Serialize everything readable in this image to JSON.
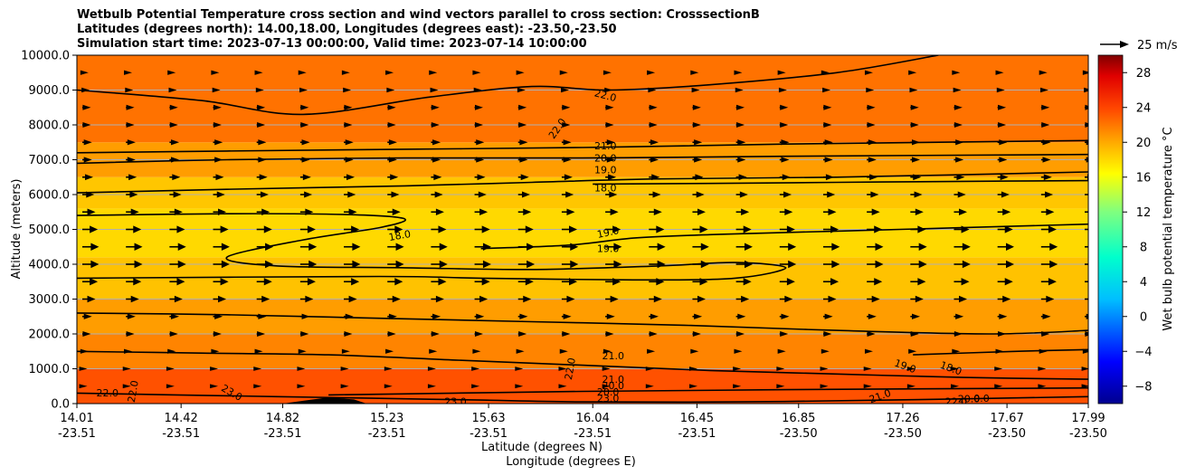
{
  "title": {
    "line1": "Wetbulb Potential Temperature cross section and wind vectors parallel to cross section: CrosssectionB",
    "line2": "Latitudes (degrees north): 14.00,18.00, Longitudes (degrees east): -23.50,-23.50",
    "line3": "Simulation start time: 2023-07-13 00:00:00, Valid time: 2023-07-14 10:00:00"
  },
  "chart_data": {
    "type": "heatmap",
    "subtype": "vertical cross section with contours and wind vectors",
    "xlabel": "Latitude (degrees N)",
    "xlabel2": "Longitude (degrees E)",
    "ylabel": "Altitude (meters)",
    "ylim": [
      0,
      10000
    ],
    "xlim": [
      14.01,
      17.99
    ],
    "yticks": [
      "0.0",
      "1000.0",
      "2000.0",
      "3000.0",
      "4000.0",
      "5000.0",
      "6000.0",
      "7000.0",
      "8000.0",
      "9000.0",
      "10000.0"
    ],
    "ytick_values": [
      0,
      1000,
      2000,
      3000,
      4000,
      5000,
      6000,
      7000,
      8000,
      9000,
      10000
    ],
    "xticks": [
      {
        "lat": "14.01",
        "lon": "-23.51",
        "value": 14.01
      },
      {
        "lat": "14.42",
        "lon": "-23.51",
        "value": 14.42
      },
      {
        "lat": "14.82",
        "lon": "-23.51",
        "value": 14.82
      },
      {
        "lat": "15.23",
        "lon": "-23.51",
        "value": 15.23
      },
      {
        "lat": "15.63",
        "lon": "-23.51",
        "value": 15.63
      },
      {
        "lat": "16.04",
        "lon": "-23.51",
        "value": 16.04
      },
      {
        "lat": "16.45",
        "lon": "-23.51",
        "value": 16.45
      },
      {
        "lat": "16.85",
        "lon": "-23.50",
        "value": 16.85
      },
      {
        "lat": "17.26",
        "lon": "-23.50",
        "value": 17.26
      },
      {
        "lat": "17.67",
        "lon": "-23.50",
        "value": 17.67
      },
      {
        "lat": "17.99",
        "lon": "-23.50",
        "value": 17.99
      }
    ],
    "colorbar": {
      "label": "Wet bulb potential temperature °C",
      "min": -10,
      "max": 30,
      "ticks": [
        "−8",
        "−4",
        "0",
        "4",
        "8",
        "12",
        "16",
        "20",
        "24",
        "28"
      ],
      "tick_values": [
        -8,
        -4,
        0,
        4,
        8,
        12,
        16,
        20,
        24,
        28
      ]
    },
    "wind_key": {
      "label": "25 m/s",
      "speed": 25
    },
    "field_layers": [
      {
        "alt_min": 0,
        "alt_max": 1000,
        "temp": 23.5
      },
      {
        "alt_min": 1000,
        "alt_max": 2000,
        "temp": 21.5
      },
      {
        "alt_min": 2000,
        "alt_max": 3000,
        "temp": 20.5
      },
      {
        "alt_min": 3000,
        "alt_max": 4200,
        "temp": 19.0
      },
      {
        "alt_min": 4200,
        "alt_max": 5600,
        "temp": 18.0
      },
      {
        "alt_min": 5600,
        "alt_max": 6500,
        "temp": 18.8
      },
      {
        "alt_min": 6500,
        "alt_max": 7500,
        "temp": 20.5
      },
      {
        "alt_min": 7500,
        "alt_max": 10000,
        "temp": 22.2
      }
    ],
    "contours": [
      {
        "level": 18.0,
        "points": [
          [
            14.01,
            5400
          ],
          [
            14.6,
            5450
          ],
          [
            15.1,
            5420
          ],
          [
            15.3,
            5300
          ],
          [
            15.2,
            5050
          ],
          [
            14.9,
            4700
          ],
          [
            14.6,
            4200
          ],
          [
            14.8,
            3950
          ],
          [
            15.3,
            3900
          ],
          [
            15.8,
            3850
          ],
          [
            16.3,
            3950
          ],
          [
            16.6,
            4050
          ],
          [
            16.8,
            3900
          ],
          [
            16.6,
            3600
          ],
          [
            16.2,
            3550
          ],
          [
            15.6,
            3600
          ],
          [
            15.2,
            3650
          ],
          [
            14.01,
            3600
          ]
        ]
      },
      {
        "level": 18.0,
        "points": [
          [
            16.04,
            6300
          ],
          [
            16.5,
            6320
          ],
          [
            17.0,
            6350
          ],
          [
            17.5,
            6380
          ],
          [
            17.99,
            6400
          ]
        ]
      },
      {
        "level": 19.0,
        "points": [
          [
            14.01,
            6050
          ],
          [
            14.6,
            6150
          ],
          [
            15.3,
            6250
          ],
          [
            15.8,
            6350
          ],
          [
            16.3,
            6450
          ],
          [
            17.0,
            6500
          ],
          [
            17.99,
            6650
          ]
        ]
      },
      {
        "level": 19.0,
        "points": [
          [
            15.6,
            4450
          ],
          [
            15.95,
            4550
          ],
          [
            16.2,
            4750
          ],
          [
            16.5,
            4850
          ],
          [
            17.0,
            4950
          ],
          [
            17.99,
            5150
          ]
        ]
      },
      {
        "level": 19.0,
        "points": [
          [
            17.3,
            1400
          ],
          [
            17.7,
            1500
          ],
          [
            17.99,
            1550
          ]
        ]
      },
      {
        "level": 20.0,
        "points": [
          [
            14.01,
            6900
          ],
          [
            14.6,
            7000
          ],
          [
            15.3,
            7050
          ],
          [
            16.0,
            7050
          ],
          [
            16.8,
            7100
          ],
          [
            17.99,
            7150
          ]
        ]
      },
      {
        "level": 20.0,
        "points": [
          [
            15.0,
            250
          ],
          [
            15.5,
            300
          ],
          [
            16.0,
            350
          ],
          [
            16.8,
            400
          ],
          [
            17.99,
            450
          ]
        ]
      },
      {
        "level": 21.0,
        "points": [
          [
            14.01,
            7200
          ],
          [
            14.6,
            7250
          ],
          [
            15.3,
            7300
          ],
          [
            16.0,
            7350
          ],
          [
            16.8,
            7450
          ],
          [
            17.99,
            7550
          ]
        ]
      },
      {
        "level": 21.0,
        "points": [
          [
            14.01,
            1500
          ],
          [
            14.5,
            1450
          ],
          [
            15.0,
            1400
          ],
          [
            15.5,
            1250
          ],
          [
            16.0,
            1100
          ],
          [
            16.5,
            950
          ],
          [
            17.0,
            850
          ],
          [
            17.5,
            750
          ],
          [
            17.99,
            700
          ]
        ]
      },
      {
        "level": 22.0,
        "points": [
          [
            14.01,
            9000
          ],
          [
            14.5,
            8700
          ],
          [
            14.9,
            8300
          ],
          [
            15.4,
            8800
          ],
          [
            15.8,
            9100
          ],
          [
            16.1,
            9000
          ],
          [
            16.5,
            9150
          ],
          [
            17.0,
            9500
          ],
          [
            17.4,
            10000
          ]
        ]
      },
      {
        "level": 22.0,
        "points": [
          [
            14.01,
            2600
          ],
          [
            14.6,
            2550
          ],
          [
            15.2,
            2450
          ],
          [
            15.8,
            2350
          ],
          [
            16.4,
            2250
          ],
          [
            17.0,
            2100
          ],
          [
            17.6,
            2000
          ],
          [
            17.99,
            2100
          ]
        ]
      },
      {
        "level": 23.0,
        "points": [
          [
            14.01,
            300
          ],
          [
            14.4,
            250
          ],
          [
            14.8,
            200
          ],
          [
            15.2,
            150
          ],
          [
            15.6,
            100
          ],
          [
            16.0,
            50
          ],
          [
            16.6,
            50
          ],
          [
            17.2,
            100
          ],
          [
            17.99,
            200
          ]
        ]
      }
    ],
    "contour_labels": [
      {
        "text": "22.0",
        "x": 16.09,
        "y": 8850,
        "rotation": 15
      },
      {
        "text": "22.0",
        "x": 15.9,
        "y": 7900,
        "rotation": -55
      },
      {
        "text": "21.0",
        "x": 16.09,
        "y": 7400
      },
      {
        "text": "20.0",
        "x": 16.09,
        "y": 7050
      },
      {
        "text": "19.0",
        "x": 16.09,
        "y": 6720
      },
      {
        "text": "18.0",
        "x": 16.09,
        "y": 6200
      },
      {
        "text": "19.0",
        "x": 16.1,
        "y": 4920,
        "rotation": -12
      },
      {
        "text": "19.0",
        "x": 16.1,
        "y": 4450
      },
      {
        "text": "18.0",
        "x": 15.28,
        "y": 4830,
        "rotation": -10
      },
      {
        "text": "21.0",
        "x": 16.12,
        "y": 1380
      },
      {
        "text": "22.0",
        "x": 15.95,
        "y": 1000,
        "rotation": -80
      },
      {
        "text": "21.0",
        "x": 16.12,
        "y": 700
      },
      {
        "text": "20.0",
        "x": 16.12,
        "y": 520
      },
      {
        "text": "20.0",
        "x": 16.1,
        "y": 340
      },
      {
        "text": "23.0",
        "x": 16.1,
        "y": 150
      },
      {
        "text": "23.0",
        "x": 15.5,
        "y": 60
      },
      {
        "text": "23.0",
        "x": 14.62,
        "y": 320,
        "rotation": 30
      },
      {
        "text": "22.0",
        "x": 14.13,
        "y": 310
      },
      {
        "text": "22.0",
        "x": 14.23,
        "y": 350,
        "rotation": -80
      },
      {
        "text": "19.0",
        "x": 17.27,
        "y": 1080,
        "rotation": 20
      },
      {
        "text": "18.0",
        "x": 17.45,
        "y": 1020,
        "rotation": 20
      },
      {
        "text": "21.0",
        "x": 17.17,
        "y": 220,
        "rotation": -20
      },
      {
        "text": "22.0",
        "x": 17.47,
        "y": 60
      },
      {
        "text": "20.0",
        "x": 17.52,
        "y": 140
      },
      {
        "text": "0.0",
        "x": 17.57,
        "y": 150
      }
    ],
    "wind_profile": [
      {
        "alt": 500,
        "speed": 2
      },
      {
        "alt": 1000,
        "speed": 2
      },
      {
        "alt": 1500,
        "speed": 3
      },
      {
        "alt": 2000,
        "speed": 5
      },
      {
        "alt": 2500,
        "speed": 6
      },
      {
        "alt": 3000,
        "speed": 9
      },
      {
        "alt": 3500,
        "speed": 11
      },
      {
        "alt": 4000,
        "speed": 12
      },
      {
        "alt": 4500,
        "speed": 12
      },
      {
        "alt": 5000,
        "speed": 11
      },
      {
        "alt": 5500,
        "speed": 9
      },
      {
        "alt": 6000,
        "speed": 8
      },
      {
        "alt": 6500,
        "speed": 7
      },
      {
        "alt": 7000,
        "speed": 6
      },
      {
        "alt": 7500,
        "speed": 6
      },
      {
        "alt": 8000,
        "speed": 5
      },
      {
        "alt": 8500,
        "speed": 5
      },
      {
        "alt": 9000,
        "speed": 4
      },
      {
        "alt": 9500,
        "speed": 3
      }
    ],
    "terrain": [
      [
        14.82,
        0
      ],
      [
        14.9,
        80
      ],
      [
        15.0,
        180
      ],
      [
        15.1,
        120
      ],
      [
        15.15,
        0
      ]
    ]
  }
}
